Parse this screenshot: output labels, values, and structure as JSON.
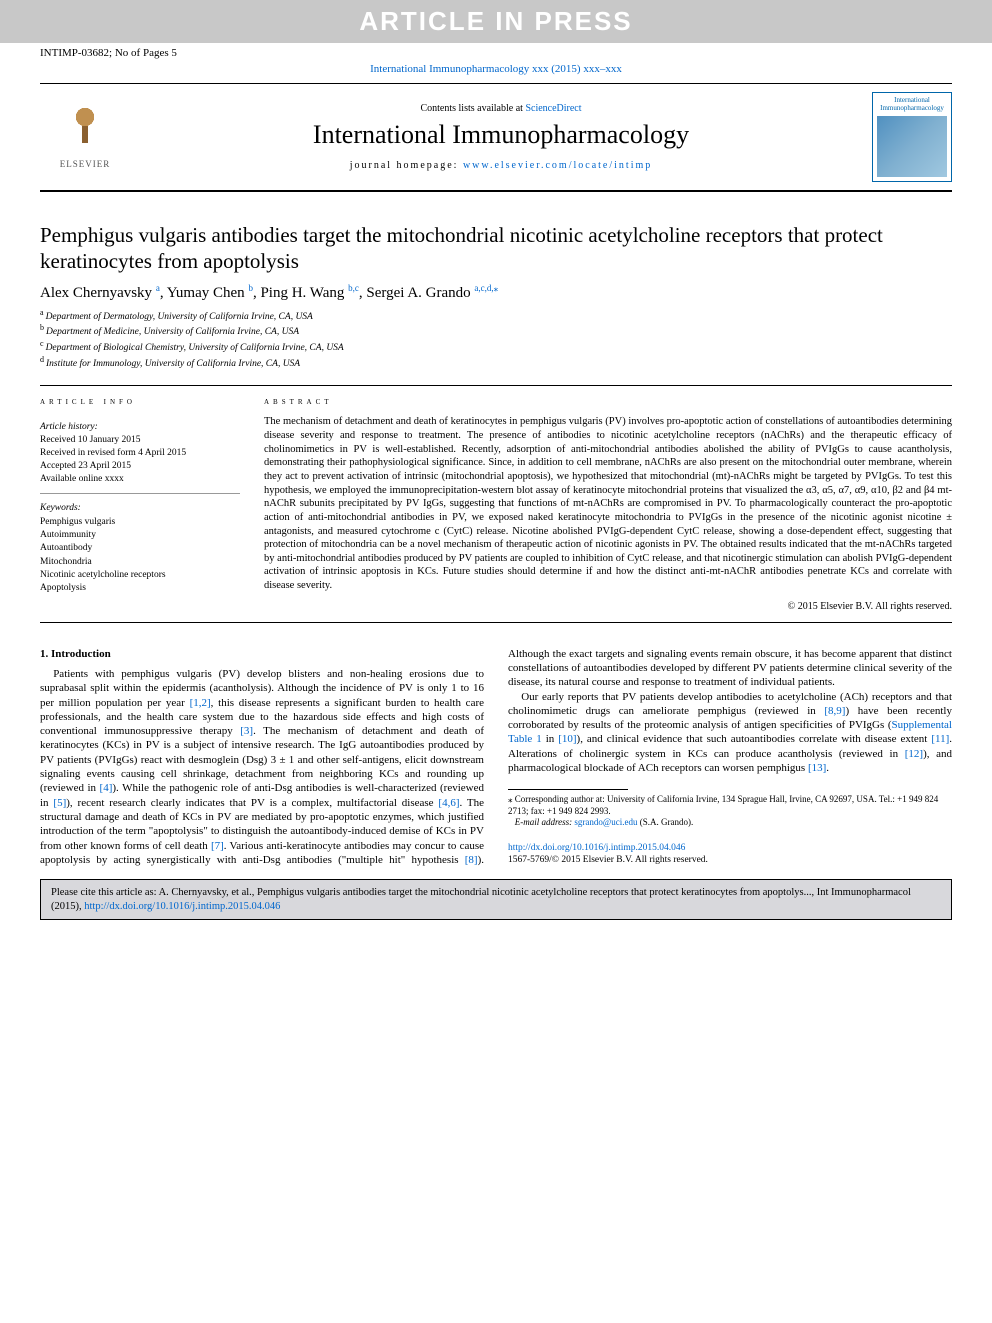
{
  "banner": "ARTICLE IN PRESS",
  "header": {
    "left": "INTIMP-03682; No of Pages 5",
    "journal_ref": "International Immunopharmacology xxx (2015) xxx–xxx"
  },
  "masthead": {
    "publisher": "ELSEVIER",
    "contents_prefix": "Contents lists available at ",
    "contents_link": "ScienceDirect",
    "journal_name": "International Immunopharmacology",
    "homepage_prefix": "journal homepage: ",
    "homepage_url": "www.elsevier.com/locate/intimp",
    "cover_line1": "International",
    "cover_line2": "Immunopharmacology"
  },
  "article": {
    "title": "Pemphigus vulgaris antibodies target the mitochondrial nicotinic acetylcholine receptors that protect keratinocytes from apoptolysis",
    "authors_html": "Alex Chernyavsky <sup>a</sup>, Yumay Chen <sup>b</sup>, Ping H. Wang <sup>b,c</sup>, Sergei A. Grando <sup>a,c,d,</sup>",
    "authors": [
      {
        "name": "Alex Chernyavsky",
        "aff": "a"
      },
      {
        "name": "Yumay Chen",
        "aff": "b"
      },
      {
        "name": "Ping H. Wang",
        "aff": "b,c"
      },
      {
        "name": "Sergei A. Grando",
        "aff": "a,c,d,",
        "corr": true
      }
    ],
    "affiliations": [
      {
        "sup": "a",
        "text": "Department of Dermatology, University of California Irvine, CA, USA"
      },
      {
        "sup": "b",
        "text": "Department of Medicine, University of California Irvine, CA, USA"
      },
      {
        "sup": "c",
        "text": "Department of Biological Chemistry, University of California Irvine, CA, USA"
      },
      {
        "sup": "d",
        "text": "Institute for Immunology, University of California Irvine, CA, USA"
      }
    ]
  },
  "info": {
    "heading": "article info",
    "history_label": "Article history:",
    "history": [
      "Received 10 January 2015",
      "Received in revised form 4 April 2015",
      "Accepted 23 April 2015",
      "Available online xxxx"
    ],
    "keywords_label": "Keywords:",
    "keywords": [
      "Pemphigus vulgaris",
      "Autoimmunity",
      "Autoantibody",
      "Mitochondria",
      "Nicotinic acetylcholine receptors",
      "Apoptolysis"
    ]
  },
  "abstract": {
    "heading": "abstract",
    "text": "The mechanism of detachment and death of keratinocytes in pemphigus vulgaris (PV) involves pro-apoptotic action of constellations of autoantibodies determining disease severity and response to treatment. The presence of antibodies to nicotinic acetylcholine receptors (nAChRs) and the therapeutic efficacy of cholinomimetics in PV is well-established. Recently, adsorption of anti-mitochondrial antibodies abolished the ability of PVIgGs to cause acantholysis, demonstrating their pathophysiological significance. Since, in addition to cell membrane, nAChRs are also present on the mitochondrial outer membrane, wherein they act to prevent activation of intrinsic (mitochondrial apoptosis), we hypothesized that mitochondrial (mt)-nAChRs might be targeted by PVIgGs. To test this hypothesis, we employed the immunoprecipitation-western blot assay of keratinocyte mitochondrial proteins that visualized the α3, α5, α7, α9, α10, β2 and β4 mt-nAChR subunits precipitated by PV IgGs, suggesting that functions of mt-nAChRs are compromised in PV. To pharmacologically counteract the pro-apoptotic action of anti-mitochondrial antibodies in PV, we exposed naked keratinocyte mitochondria to PVIgGs in the presence of the nicotinic agonist nicotine ± antagonists, and measured cytochrome c (CytC) release. Nicotine abolished PVIgG-dependent CytC release, showing a dose-dependent effect, suggesting that protection of mitochondria can be a novel mechanism of therapeutic action of nicotinic agonists in PV. The obtained results indicated that the mt-nAChRs targeted by anti-mitochondrial antibodies produced by PV patients are coupled to inhibition of CytC release, and that nicotinergic stimulation can abolish PVIgG-dependent activation of intrinsic apoptosis in KCs. Future studies should determine if and how the distinct anti-mt-nAChR antibodies penetrate KCs and correlate with disease severity.",
    "copyright": "© 2015 Elsevier B.V. All rights reserved."
  },
  "body": {
    "section_heading": "1. Introduction",
    "p1a": "Patients with pemphigus vulgaris (PV) develop blisters and non-healing erosions due to suprabasal split within the epidermis (acantholysis). Although the incidence of PV is only 1 to 16 per million population per year ",
    "ref12": "[1,2]",
    "p1b": ", this disease represents a significant burden to health care professionals, and the health care system due to the hazardous side effects and high costs of conventional immunosuppressive therapy ",
    "ref3": "[3]",
    "p1c": ". The mechanism of detachment and death of keratinocytes (KCs) in PV is a subject of intensive research. The IgG autoantibodies produced by PV patients (PVIgGs) react with desmoglein (Dsg) 3 ± 1 and other self-antigens, elicit downstream signaling events causing cell shrinkage, detachment from neighboring KCs and rounding up (reviewed in ",
    "ref4": "[4]",
    "p1d": "). While the pathogenic role of anti-Dsg antibodies is well-characterized (reviewed in ",
    "ref5": "[5]",
    "p1e": "), recent research clearly indicates",
    "p2a": "that PV is a complex, multifactorial disease ",
    "ref46": "[4,6]",
    "p2b": ". The structural damage and death of KCs in PV are mediated by pro-apoptotic enzymes, which justified introduction of the term \"apoptolysis\" to distinguish the autoantibody-induced demise of KCs in PV from other known forms of cell death ",
    "ref7": "[7]",
    "p2c": ". Various anti-keratinocyte antibodies may concur to cause apoptolysis by acting synergistically with anti-Dsg antibodies (\"multiple hit\" hypothesis ",
    "ref8": "[8]",
    "p2d": "). Although the exact targets and signaling events remain obscure, it has become apparent that distinct constellations of autoantibodies developed by different PV patients determine clinical severity of the disease, its natural course and response to treatment of individual patients.",
    "p3a": "Our early reports that PV patients develop antibodies to acetylcholine (ACh) receptors and that cholinomimetic drugs can ameliorate pemphigus (reviewed in ",
    "ref89": "[8,9]",
    "p3b": ") have been recently corroborated by results of the proteomic analysis of antigen specificities of PVIgGs (",
    "supp": "Supplemental Table 1",
    "p3c": " in ",
    "ref10": "[10]",
    "p3d": "), and clinical evidence that such autoantibodies correlate with disease extent ",
    "ref11": "[11]",
    "p3e": ". Alterations of cholinergic system in KCs can produce acantholysis (reviewed in ",
    "ref12b": "[12]",
    "p3f": "), and pharmacological blockade of ACh receptors can worsen pemphigus ",
    "ref13": "[13]",
    "p3g": "."
  },
  "footnote": {
    "star": "⁎",
    "corr_text": "Corresponding author at: University of California Irvine, 134 Sprague Hall, Irvine, CA 92697, USA. Tel.: +1 949 824 2713; fax: +1 949 824 2993.",
    "email_label": "E-mail address:",
    "email": "sgrando@uci.edu",
    "email_paren": "(S.A. Grando)."
  },
  "doi": {
    "url": "http://dx.doi.org/10.1016/j.intimp.2015.04.046",
    "issn_line": "1567-5769/© 2015 Elsevier B.V. All rights reserved."
  },
  "cite": {
    "text_a": "Please cite this article as: A. Chernyavsky, et al., Pemphigus vulgaris antibodies target the mitochondrial nicotinic acetylcholine receptors that protect keratinocytes from apoptolys..., Int Immunopharmacol (2015), ",
    "url": "http://dx.doi.org/10.1016/j.intimp.2015.04.046"
  },
  "colors": {
    "banner_bg": "#c8c8c8",
    "banner_fg": "#ffffff",
    "link": "#0066cc",
    "cite_bg": "#d8d8dc",
    "text": "#000000"
  }
}
